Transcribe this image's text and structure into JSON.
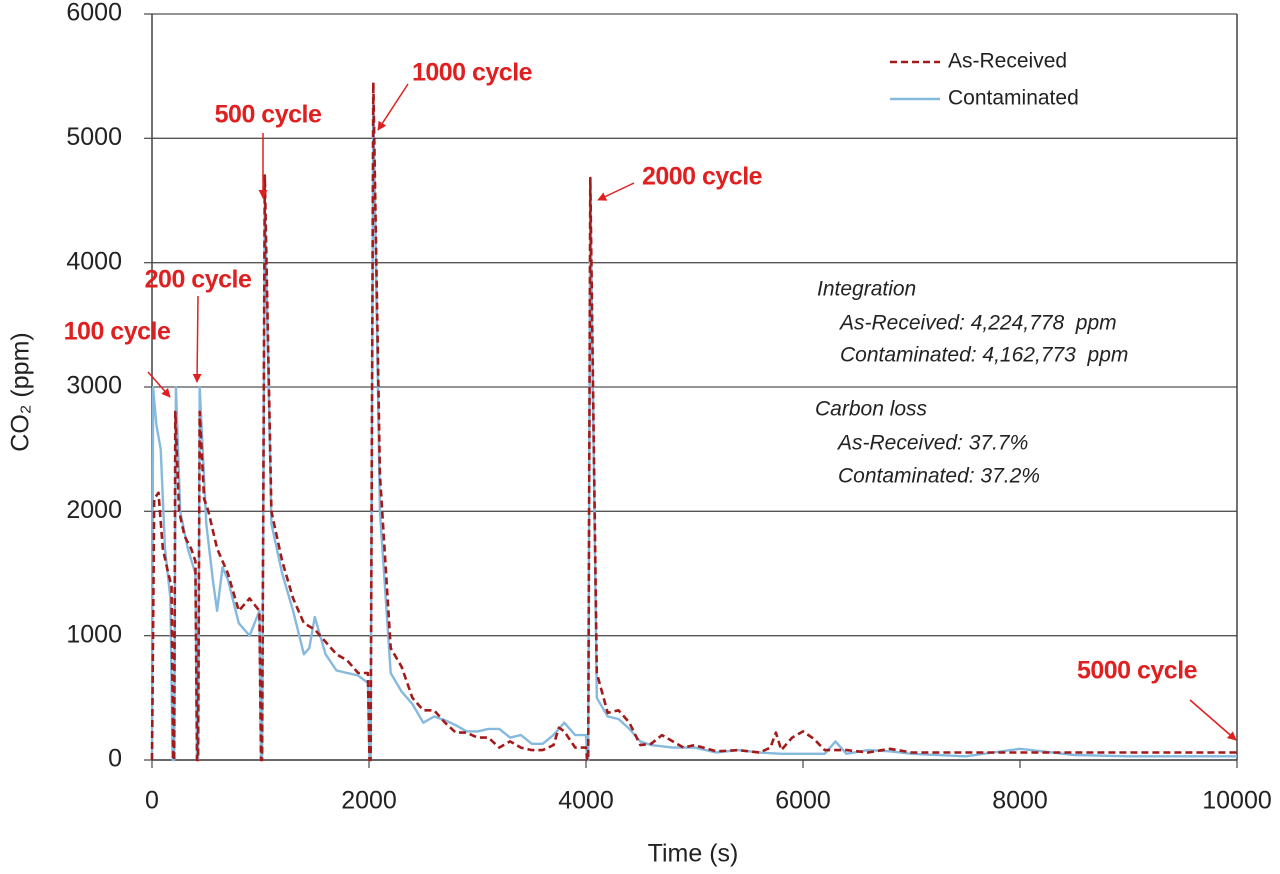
{
  "chart_data": {
    "type": "line",
    "x_label": "Time (s)",
    "y_label": "CO₂ (ppm)",
    "xlim": [
      0,
      10000
    ],
    "xticks": [
      0,
      2000,
      4000,
      6000,
      8000,
      10000
    ],
    "ylim": [
      0,
      6000
    ],
    "yticks": [
      0,
      1000,
      2000,
      3000,
      4000,
      5000,
      6000
    ],
    "grid": true,
    "legend": "upper right",
    "annotations": [
      "100 cycle",
      "200 cycle",
      "500 cycle",
      "1000 cycle",
      "2000 cycle",
      "5000 cycle"
    ],
    "notes": [
      "Integration",
      "As-Received: 4,224,778  ppm",
      "Contaminated: 4,162,773  ppm",
      "Carbon loss",
      "As-Received: 37.7%",
      "Contaminated: 37.2%"
    ],
    "series": [
      {
        "name": "As-Received",
        "color": "#a31a1a",
        "dashed": true,
        "x": [
          0,
          20,
          60,
          100,
          150,
          180,
          195,
          205,
          215,
          250,
          300,
          360,
          400,
          415,
          425,
          440,
          480,
          520,
          600,
          700,
          800,
          900,
          990,
          1005,
          1015,
          1040,
          1100,
          1200,
          1300,
          1400,
          1500,
          1600,
          1700,
          1800,
          1900,
          1990,
          2005,
          2015,
          2040,
          2100,
          2200,
          2300,
          2400,
          2500,
          2600,
          2700,
          2800,
          2900,
          3000,
          3100,
          3200,
          3300,
          3400,
          3500,
          3600,
          3700,
          3750,
          3800,
          3900,
          4000,
          4010,
          4020,
          4040,
          4100,
          4200,
          4300,
          4400,
          4500,
          4600,
          4700,
          4800,
          4900,
          5000,
          5200,
          5400,
          5600,
          5700,
          5750,
          5800,
          5900,
          6000,
          6100,
          6200,
          6400,
          6600,
          6800,
          7000,
          7500,
          8000,
          9000,
          10000
        ],
        "values": [
          0,
          2100,
          2150,
          1700,
          1500,
          1400,
          0,
          0,
          2800,
          2000,
          1800,
          1700,
          1600,
          0,
          0,
          2800,
          2100,
          2000,
          1700,
          1500,
          1200,
          1300,
          1200,
          0,
          0,
          4700,
          2000,
          1600,
          1300,
          1100,
          1050,
          950,
          850,
          800,
          700,
          700,
          0,
          0,
          5450,
          2300,
          900,
          750,
          500,
          400,
          400,
          300,
          220,
          220,
          180,
          180,
          100,
          150,
          100,
          80,
          80,
          120,
          260,
          230,
          100,
          100,
          0,
          0,
          4680,
          700,
          380,
          400,
          300,
          120,
          130,
          200,
          150,
          100,
          120,
          70,
          80,
          60,
          100,
          220,
          80,
          180,
          230,
          170,
          80,
          80,
          60,
          90,
          60,
          60,
          60,
          60,
          60
        ]
      },
      {
        "name": "Contaminated",
        "color": "#86b9de",
        "dashed": false,
        "x": [
          0,
          10,
          40,
          80,
          120,
          170,
          190,
          205,
          220,
          260,
          330,
          400,
          415,
          425,
          440,
          500,
          560,
          600,
          650,
          700,
          800,
          900,
          990,
          1005,
          1015,
          1040,
          1100,
          1200,
          1300,
          1400,
          1450,
          1500,
          1600,
          1700,
          1800,
          1900,
          1990,
          2005,
          2015,
          2040,
          2100,
          2200,
          2300,
          2400,
          2500,
          2600,
          2700,
          2800,
          2900,
          3000,
          3100,
          3200,
          3300,
          3400,
          3500,
          3600,
          3700,
          3800,
          3900,
          4000,
          4010,
          4020,
          4040,
          4100,
          4200,
          4300,
          4400,
          4500,
          4600,
          4800,
          5000,
          5200,
          5400,
          5600,
          5800,
          6000,
          6200,
          6300,
          6400,
          6600,
          6800,
          7000,
          7500,
          8000,
          8500,
          9000,
          9500,
          10000
        ],
        "values": [
          0,
          3000,
          2700,
          2500,
          1700,
          1300,
          0,
          0,
          3000,
          2000,
          1700,
          1500,
          0,
          0,
          3000,
          1900,
          1450,
          1200,
          1550,
          1450,
          1100,
          1000,
          1200,
          0,
          0,
          4500,
          1900,
          1500,
          1200,
          850,
          900,
          1150,
          850,
          720,
          700,
          680,
          620,
          0,
          0,
          5300,
          2000,
          700,
          550,
          450,
          300,
          350,
          320,
          280,
          230,
          230,
          250,
          250,
          180,
          200,
          130,
          130,
          200,
          300,
          200,
          200,
          0,
          0,
          4600,
          500,
          350,
          330,
          250,
          150,
          120,
          100,
          100,
          60,
          80,
          60,
          50,
          50,
          50,
          150,
          50,
          80,
          70,
          50,
          30,
          90,
          40,
          30,
          30,
          30
        ]
      }
    ]
  }
}
